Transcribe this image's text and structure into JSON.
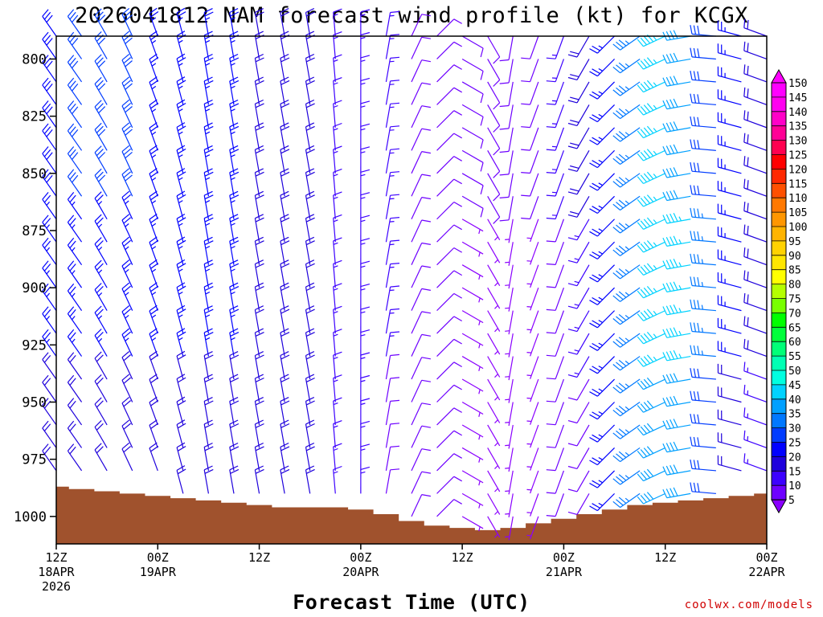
{
  "title": "2026041812 NAM forecast wind profile (kt) for KCGX",
  "xlabel": "Forecast Time (UTC)",
  "credit": "coolwx.com/models",
  "chart_data": {
    "type": "wind-barb time-height section",
    "title": "2026041812 NAM forecast wind profile (kt) for KCGX",
    "xlabel": "Forecast Time (UTC)",
    "ylabel": "",
    "units": "kt",
    "x_range_hours": [
      0,
      84
    ],
    "y_range_hPa": [
      790,
      1012
    ],
    "y_ticks": [
      800,
      825,
      850,
      875,
      900,
      925,
      950,
      975,
      1000
    ],
    "x_ticks": [
      {
        "hour": 0,
        "label": "12Z",
        "sub": [
          "18APR",
          "2026"
        ]
      },
      {
        "hour": 12,
        "label": "00Z",
        "sub": [
          "19APR"
        ]
      },
      {
        "hour": 24,
        "label": "12Z",
        "sub": []
      },
      {
        "hour": 36,
        "label": "00Z",
        "sub": [
          "20APR"
        ]
      },
      {
        "hour": 48,
        "label": "12Z",
        "sub": []
      },
      {
        "hour": 60,
        "label": "00Z",
        "sub": [
          "21APR"
        ]
      },
      {
        "hour": 72,
        "label": "12Z",
        "sub": []
      },
      {
        "hour": 84,
        "label": "00Z",
        "sub": [
          "22APR"
        ]
      }
    ],
    "hours_plotted": [
      0,
      3,
      6,
      9,
      12,
      15,
      18,
      21,
      24,
      27,
      30,
      33,
      36,
      39,
      42,
      45,
      48,
      51,
      54,
      57,
      60,
      63,
      66,
      69,
      72,
      75,
      78,
      81,
      84
    ],
    "levels_hPa": [
      790,
      800,
      810,
      820,
      830,
      840,
      850,
      860,
      870,
      880,
      890,
      900,
      910,
      920,
      930,
      940,
      950,
      960,
      970,
      980,
      990,
      1000
    ],
    "surface_pressure_hPa": [
      987,
      988,
      989,
      990,
      991,
      992,
      993,
      994,
      995,
      996,
      996,
      996,
      997,
      999,
      1002,
      1004,
      1005,
      1006,
      1005,
      1003,
      1001,
      999,
      997,
      995,
      994,
      993,
      992,
      991,
      990
    ],
    "wind_direction_deg": [
      325,
      325,
      330,
      335,
      340,
      345,
      350,
      350,
      350,
      350,
      350,
      355,
      0,
      10,
      25,
      45,
      120,
      150,
      190,
      200,
      200,
      210,
      225,
      235,
      245,
      260,
      275,
      285,
      290
    ],
    "wind_speed_kt": {
      "upper_800_850": [
        28,
        30,
        30,
        30,
        25,
        25,
        25,
        25,
        20,
        20,
        20,
        15,
        15,
        15,
        10,
        10,
        10,
        10,
        10,
        10,
        15,
        20,
        25,
        35,
        45,
        40,
        30,
        25,
        20
      ],
      "middle_875_925": [
        25,
        25,
        25,
        25,
        25,
        25,
        25,
        25,
        20,
        20,
        20,
        15,
        15,
        15,
        10,
        10,
        5,
        5,
        5,
        5,
        10,
        15,
        25,
        35,
        45,
        45,
        35,
        25,
        20
      ],
      "lower_950_1000": [
        20,
        20,
        20,
        20,
        20,
        20,
        20,
        20,
        20,
        20,
        20,
        15,
        15,
        10,
        10,
        10,
        5,
        5,
        5,
        5,
        10,
        10,
        25,
        35,
        40,
        40,
        30,
        20,
        15
      ]
    },
    "colorbar": {
      "levels": [
        5,
        10,
        15,
        20,
        25,
        30,
        35,
        40,
        45,
        50,
        55,
        60,
        65,
        70,
        75,
        80,
        85,
        90,
        95,
        100,
        105,
        110,
        115,
        120,
        125,
        130,
        135,
        140,
        145,
        150
      ],
      "colors": [
        "#8a00ff",
        "#6e00ff",
        "#3c00ff",
        "#1e00dc",
        "#0000ff",
        "#003cff",
        "#0078ff",
        "#00a0ff",
        "#00d2ff",
        "#00ffe0",
        "#00ffb4",
        "#00ff78",
        "#00ff3c",
        "#00ff00",
        "#78ff00",
        "#b4ff00",
        "#ffff00",
        "#ffe600",
        "#ffd200",
        "#ffb400",
        "#ff9600",
        "#ff7800",
        "#ff5000",
        "#ff2800",
        "#ff0000",
        "#ff0050",
        "#ff0096",
        "#ff00c8",
        "#ff00f0",
        "#ff00ff"
      ],
      "extends": "both"
    },
    "ground_color": "#a0522d"
  }
}
